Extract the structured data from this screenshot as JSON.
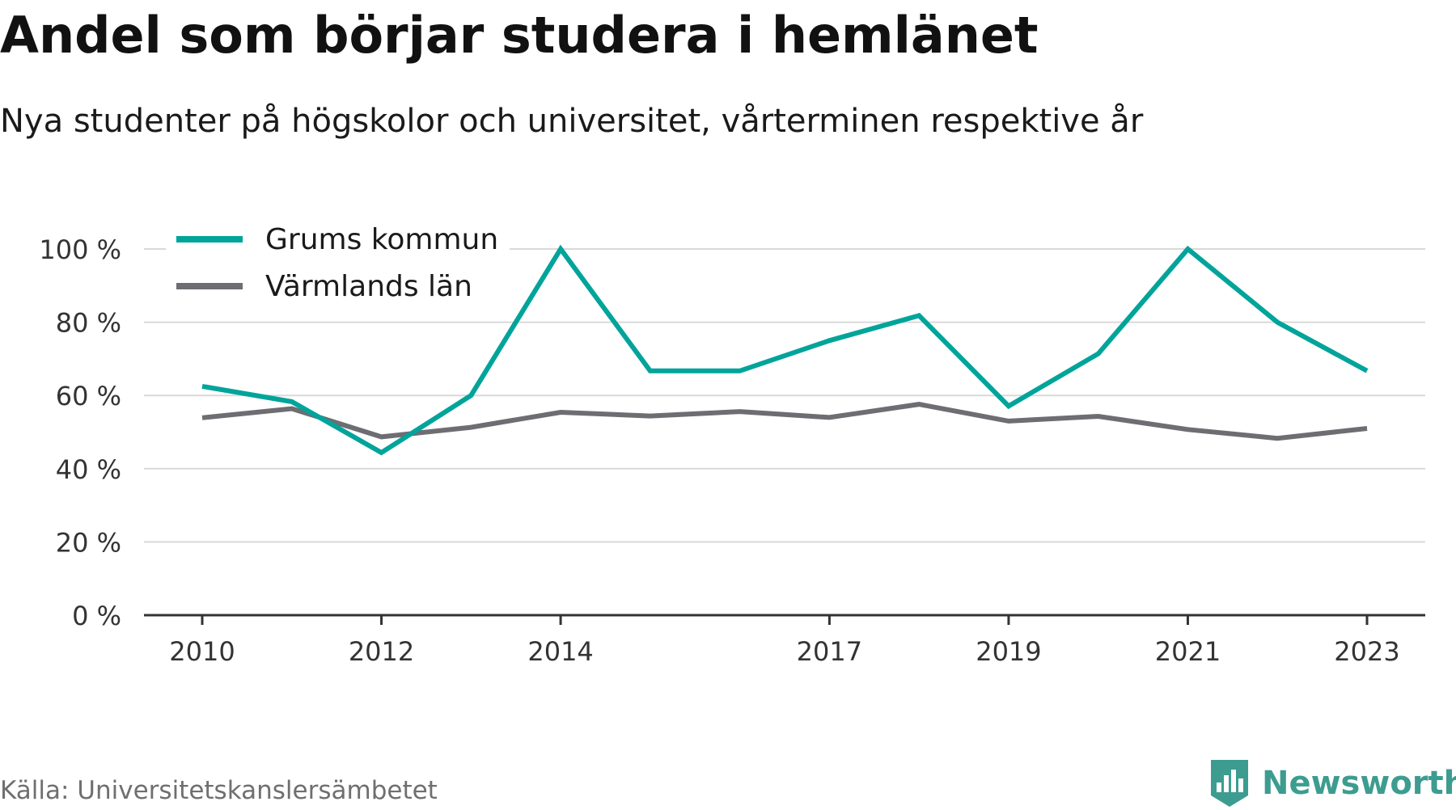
{
  "title": "Andel som börjar studera i hemlänet",
  "subtitle": "Nya studenter på högskolor och universitet, vårterminen respektive år",
  "source": "Källa: Universitetskanslersämbetet",
  "brand": {
    "name": "Newsworthy",
    "icon": "bar-chart-shield-icon",
    "color": "#3d9c90"
  },
  "chart_data": {
    "type": "line",
    "x": [
      2010,
      2011,
      2012,
      2013,
      2014,
      2015,
      2016,
      2017,
      2018,
      2019,
      2020,
      2021,
      2022,
      2023
    ],
    "xticks": [
      2010,
      2012,
      2014,
      2017,
      2019,
      2021,
      2023
    ],
    "xtick_labels": [
      "2010",
      "2012",
      "2014",
      "2017",
      "2019",
      "2021",
      "2023"
    ],
    "yticks": [
      0,
      20,
      40,
      60,
      80,
      100
    ],
    "ytick_labels": [
      "0 %",
      "20 %",
      "40 %",
      "60 %",
      "80 %",
      "100 %"
    ],
    "ylim": [
      0,
      100
    ],
    "xlim": [
      2009.35,
      2023.65
    ],
    "grid": true,
    "legend": "top-left",
    "series": [
      {
        "name": "Grums kommun",
        "color": "#00a49a",
        "values": [
          62.5,
          58.3,
          44.4,
          60.0,
          100.0,
          66.7,
          66.7,
          75.0,
          81.8,
          57.1,
          71.4,
          100.0,
          80.0,
          66.7
        ]
      },
      {
        "name": "Värmlands län",
        "color": "#6e6d72",
        "values": [
          53.9,
          56.4,
          48.7,
          51.3,
          55.4,
          54.4,
          55.6,
          54.0,
          57.6,
          53.0,
          54.3,
          50.7,
          48.3,
          51.0
        ]
      }
    ]
  }
}
